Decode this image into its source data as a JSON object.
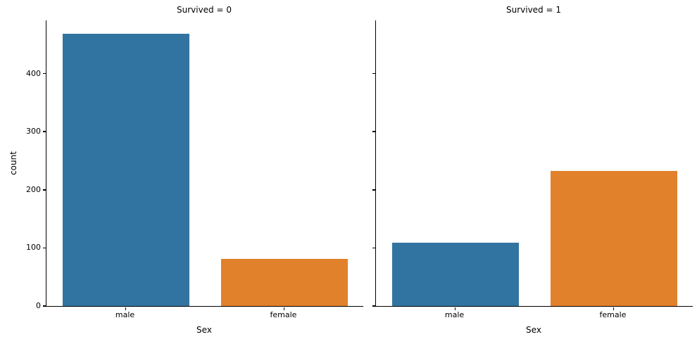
{
  "chart_data": {
    "type": "bar",
    "title": "",
    "xlabel": "Sex",
    "ylabel": "count",
    "categories": [
      "male",
      "female"
    ],
    "yticks": [
      0,
      100,
      200,
      300,
      400
    ],
    "ylim": [
      0,
      491.4
    ],
    "grid": false,
    "legend": "none",
    "colors": {
      "male": "#3274A1",
      "female": "#E1812C"
    },
    "spine_color": "#000000",
    "facets": [
      {
        "title": "Survived = 0",
        "values": [
          468,
          81
        ]
      },
      {
        "title": "Survived = 1",
        "values": [
          109,
          233
        ]
      }
    ]
  }
}
